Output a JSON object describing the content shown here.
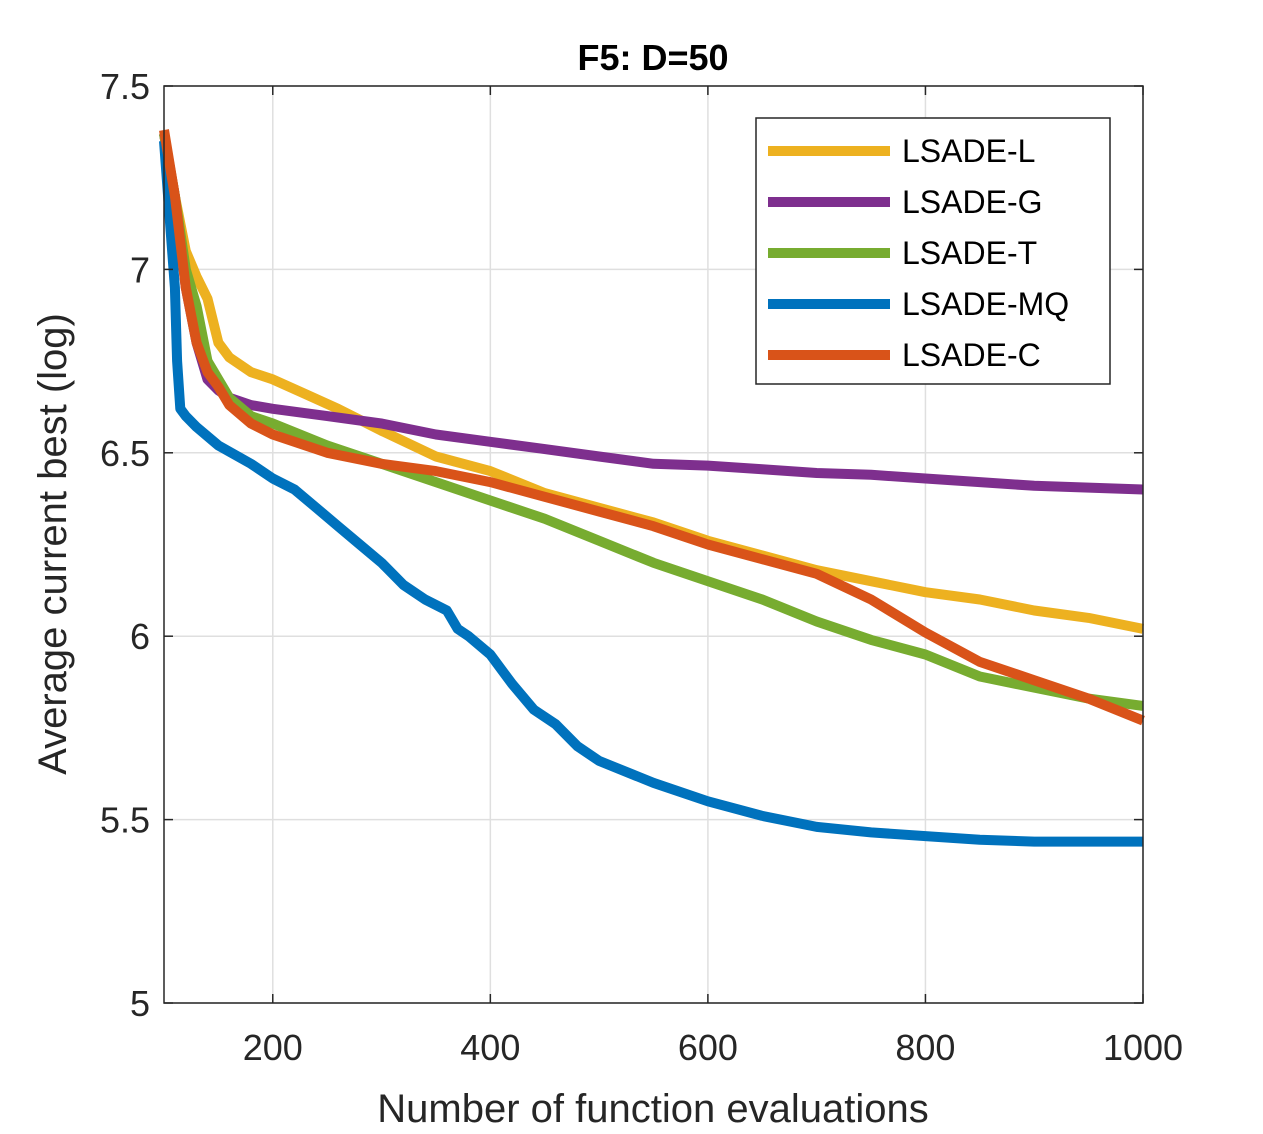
{
  "chart_data": {
    "type": "line",
    "title": "F5: D=50",
    "xlabel": "Number of function evaluations",
    "ylabel": "Average current best (log)",
    "xlim": [
      100,
      1000
    ],
    "ylim": [
      5,
      7.5
    ],
    "xticks": [
      200,
      400,
      600,
      800,
      1000
    ],
    "yticks": [
      5,
      5.5,
      6,
      6.5,
      7,
      7.5
    ],
    "xtick_labels": [
      "200",
      "400",
      "600",
      "800",
      "1000"
    ],
    "ytick_labels": [
      "5",
      "5.5",
      "6",
      "6.5",
      "7",
      "7.5"
    ],
    "grid": true,
    "legend_position": "top-right",
    "series": [
      {
        "name": "LSADE-L",
        "color": "#EDB120",
        "x": [
          100,
          110,
          120,
          130,
          140,
          150,
          160,
          180,
          200,
          230,
          260,
          300,
          350,
          400,
          450,
          500,
          550,
          600,
          650,
          700,
          750,
          800,
          850,
          900,
          950,
          1000
        ],
        "y": [
          7.37,
          7.2,
          7.05,
          6.98,
          6.92,
          6.8,
          6.76,
          6.72,
          6.7,
          6.66,
          6.62,
          6.56,
          6.49,
          6.45,
          6.39,
          6.35,
          6.31,
          6.26,
          6.22,
          6.18,
          6.15,
          6.12,
          6.1,
          6.07,
          6.05,
          6.02
        ]
      },
      {
        "name": "LSADE-G",
        "color": "#7E2F8E",
        "x": [
          100,
          110,
          120,
          130,
          140,
          150,
          160,
          180,
          200,
          250,
          300,
          350,
          400,
          450,
          500,
          550,
          600,
          650,
          700,
          750,
          800,
          850,
          900,
          950,
          1000
        ],
        "y": [
          7.37,
          7.2,
          6.95,
          6.8,
          6.7,
          6.67,
          6.65,
          6.63,
          6.62,
          6.6,
          6.58,
          6.55,
          6.53,
          6.51,
          6.49,
          6.47,
          6.465,
          6.455,
          6.445,
          6.44,
          6.43,
          6.42,
          6.41,
          6.405,
          6.4
        ]
      },
      {
        "name": "LSADE-T",
        "color": "#77AC30",
        "x": [
          100,
          110,
          120,
          130,
          140,
          150,
          160,
          180,
          200,
          250,
          300,
          350,
          400,
          450,
          500,
          550,
          600,
          650,
          700,
          750,
          800,
          850,
          900,
          950,
          1000
        ],
        "y": [
          7.37,
          7.2,
          7.0,
          6.9,
          6.75,
          6.7,
          6.65,
          6.6,
          6.58,
          6.52,
          6.47,
          6.42,
          6.37,
          6.32,
          6.26,
          6.2,
          6.15,
          6.1,
          6.04,
          5.99,
          5.95,
          5.89,
          5.86,
          5.83,
          5.81
        ]
      },
      {
        "name": "LSADE-MQ",
        "color": "#0072BD",
        "x": [
          100,
          105,
          110,
          112,
          115,
          120,
          130,
          150,
          180,
          200,
          220,
          240,
          260,
          280,
          300,
          320,
          340,
          360,
          370,
          380,
          400,
          420,
          440,
          460,
          480,
          500,
          550,
          600,
          650,
          700,
          750,
          800,
          850,
          900,
          950,
          1000
        ],
        "y": [
          7.35,
          7.15,
          6.95,
          6.75,
          6.62,
          6.6,
          6.57,
          6.52,
          6.47,
          6.43,
          6.4,
          6.35,
          6.3,
          6.25,
          6.2,
          6.14,
          6.1,
          6.07,
          6.02,
          6.0,
          5.95,
          5.87,
          5.8,
          5.76,
          5.7,
          5.66,
          5.6,
          5.55,
          5.51,
          5.48,
          5.465,
          5.455,
          5.445,
          5.44,
          5.44,
          5.44
        ]
      },
      {
        "name": "LSADE-C",
        "color": "#D95319",
        "x": [
          100,
          110,
          120,
          130,
          140,
          150,
          160,
          180,
          200,
          250,
          300,
          350,
          400,
          450,
          500,
          550,
          600,
          650,
          700,
          750,
          800,
          850,
          900,
          950,
          1000
        ],
        "y": [
          7.38,
          7.2,
          6.95,
          6.8,
          6.72,
          6.68,
          6.63,
          6.58,
          6.55,
          6.5,
          6.47,
          6.45,
          6.42,
          6.38,
          6.34,
          6.3,
          6.25,
          6.21,
          6.17,
          6.1,
          6.01,
          5.93,
          5.88,
          5.83,
          5.77
        ]
      }
    ]
  }
}
